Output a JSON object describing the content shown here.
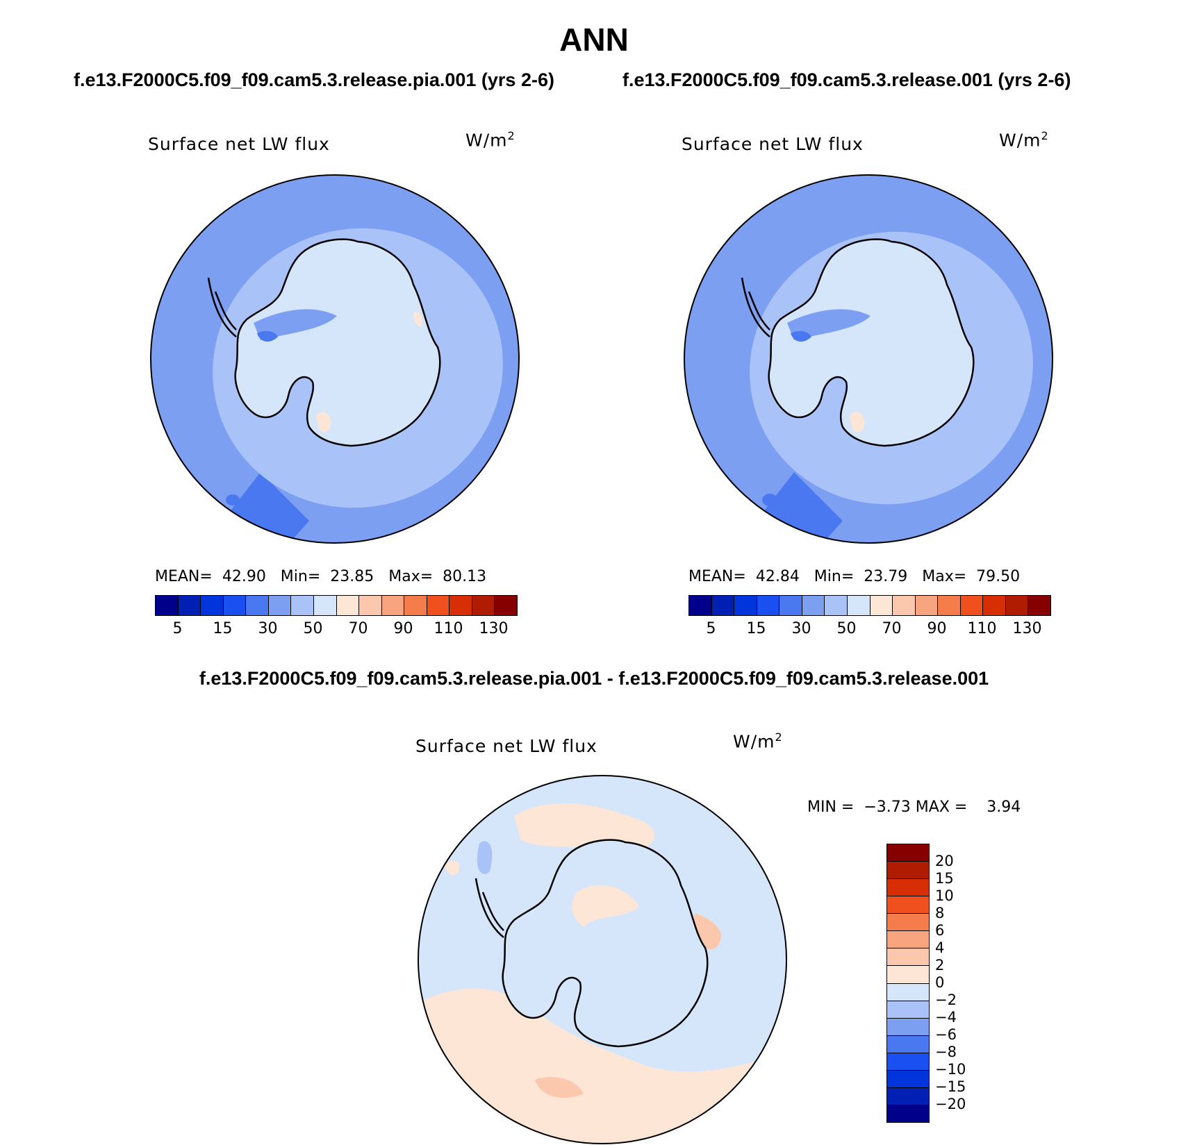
{
  "main_title": "ANN",
  "panels": [
    {
      "case_title": "f.e13.F2000C5.f09_f09.cam5.3.release.pia.001 (yrs 2-6)",
      "variable_label": "Surface net LW flux",
      "units_base": "W/m",
      "units_exp": "2",
      "mean_label": "MEAN=",
      "mean_value": "42.90",
      "min_label": "Min=",
      "min_value": "23.85",
      "max_label": "Max=",
      "max_value": "80.13"
    },
    {
      "case_title": "f.e13.F2000C5.f09_f09.cam5.3.release.001 (yrs 2-6)",
      "variable_label": "Surface net LW flux",
      "units_base": "W/m",
      "units_exp": "2",
      "mean_label": "MEAN=",
      "mean_value": "42.84",
      "min_label": "Min=",
      "min_value": "23.79",
      "max_label": "Max=",
      "max_value": "79.50"
    }
  ],
  "abs_colorbar": {
    "colors": [
      "#00008b",
      "#0020b4",
      "#0035dc",
      "#1a4ff2",
      "#4a78f0",
      "#7d9ff2",
      "#a9c2f8",
      "#d5e6fb",
      "#fde6d6",
      "#fcc8ad",
      "#f8a47e",
      "#f57d4b",
      "#f0501e",
      "#d72e05",
      "#b01c02",
      "#870000"
    ],
    "tick_labels": [
      "5",
      "15",
      "30",
      "50",
      "70",
      "90",
      "110",
      "130"
    ]
  },
  "diff": {
    "title": "f.e13.F2000C5.f09_f09.cam5.3.release.pia.001 - f.e13.F2000C5.f09_f09.cam5.3.release.001",
    "variable_label": "Surface net LW flux",
    "units_base": "W/m",
    "units_exp": "2",
    "min_label": "MIN =",
    "min_value": "−3.73",
    "max_label": "MAX =",
    "max_value": "3.94",
    "colorbar": {
      "colors_top_to_bottom": [
        "#870000",
        "#b01c02",
        "#d72e05",
        "#f0501e",
        "#f57d4b",
        "#f8a47e",
        "#fcc8ad",
        "#fde6d6",
        "#d5e6fb",
        "#a9c2f8",
        "#7d9ff2",
        "#4a78f0",
        "#1a4ff2",
        "#0035dc",
        "#0020b4",
        "#00008b"
      ],
      "tick_labels_top_to_bottom": [
        "20",
        "15",
        "10",
        "8",
        "6",
        "4",
        "2",
        "0",
        "−2",
        "−4",
        "−6",
        "−8",
        "−10",
        "−15",
        "−20"
      ]
    }
  }
}
